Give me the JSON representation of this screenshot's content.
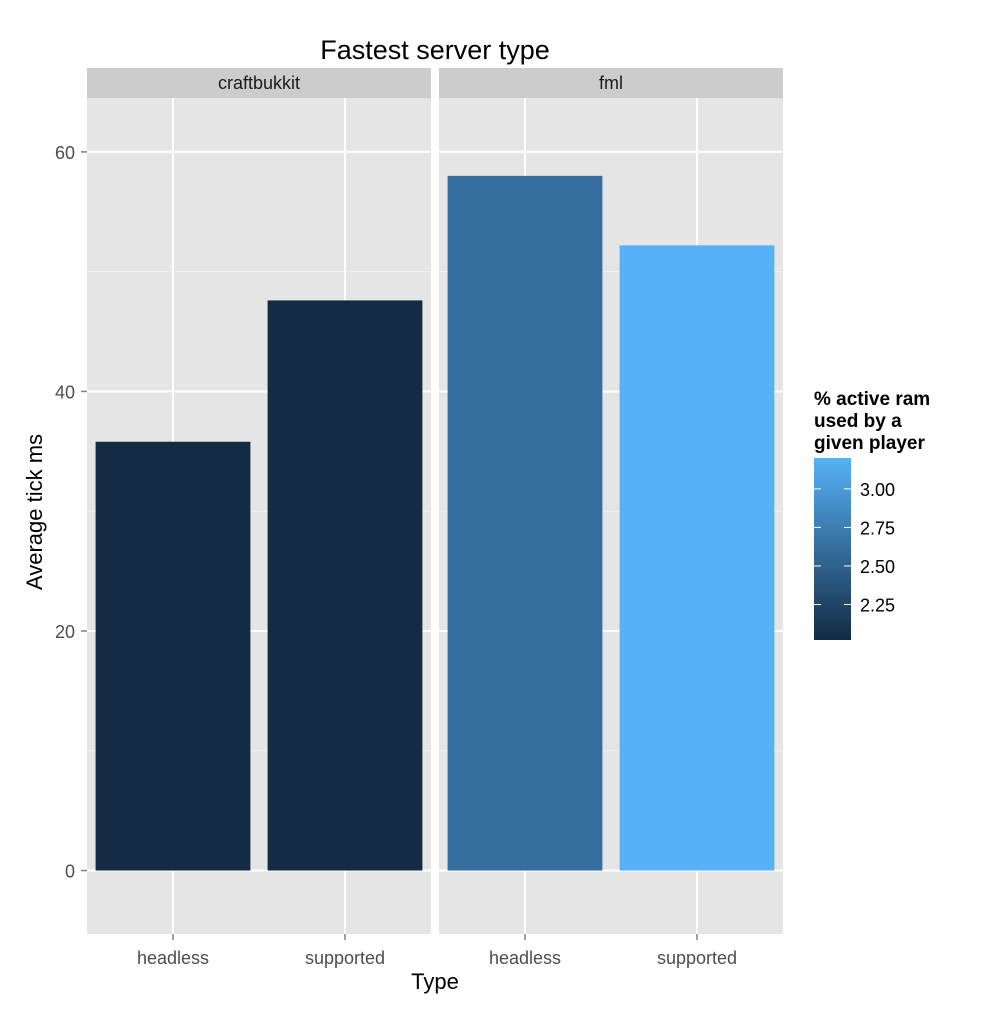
{
  "chart_data": {
    "type": "bar",
    "title": "Fastest server type",
    "xlabel": "Type",
    "ylabel": "Average tick ms",
    "ylim": [
      -5.3,
      64.5
    ],
    "y_ticks": [
      0,
      20,
      40,
      60
    ],
    "grid": true,
    "legend_position": "right",
    "facets": [
      {
        "name": "craftbukkit",
        "categories": [
          "headless",
          "supported"
        ],
        "values": [
          35.8,
          47.6
        ],
        "fill": [
          2.02,
          2.02
        ]
      },
      {
        "name": "fml",
        "categories": [
          "headless",
          "supported"
        ],
        "values": [
          58.0,
          52.2
        ],
        "fill": [
          2.62,
          3.2
        ]
      }
    ],
    "legend": {
      "title": [
        "% active ram",
        "used by a",
        "given player"
      ],
      "ticks": [
        "3.00",
        "2.75",
        "2.50",
        "2.25"
      ],
      "tick_values": [
        3.0,
        2.75,
        2.5,
        2.25
      ],
      "range": [
        2.02,
        3.2
      ],
      "low_color": "#132B43",
      "high_color": "#56B1F7"
    }
  },
  "colors": {
    "panel_bg": "#E5E5E5",
    "strip_bg": "#CCCCCC",
    "grid": "#FFFFFF",
    "bar_low": "#132B43",
    "bar_high": "#56B1F7"
  }
}
